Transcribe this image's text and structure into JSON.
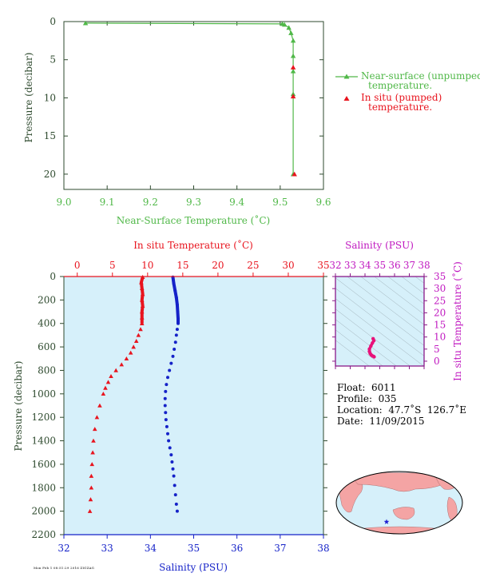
{
  "chart_data": [
    {
      "type": "line",
      "xlabel": "Near-Surface Temperature (˚C)",
      "ylabel": "Pressure (decibar)",
      "xlim": [
        9.0,
        9.6
      ],
      "ylim": [
        22,
        0
      ],
      "xticks": [
        "9.0",
        "9.1",
        "9.2",
        "9.3",
        "9.4",
        "9.5",
        "9.6"
      ],
      "yticks": [
        "0",
        "5",
        "10",
        "15",
        "20"
      ],
      "legend_position": "right",
      "series": [
        {
          "name": "Near-surface (unpumped)",
          "name_line2": "temperature.",
          "color": "#50b848",
          "marker": "triangle",
          "points": [
            [
              9.05,
              0.2
            ],
            [
              9.505,
              0.3
            ],
            [
              9.51,
              0.4
            ],
            [
              9.52,
              0.8
            ],
            [
              9.525,
              1.5
            ],
            [
              9.53,
              2.5
            ],
            [
              9.53,
              4.5
            ],
            [
              9.53,
              6.5
            ],
            [
              9.53,
              9.5
            ],
            [
              9.53,
              20.0
            ]
          ]
        },
        {
          "name": "In situ (pumped)",
          "name_line2": "temperature.",
          "color": "#e8141e",
          "marker": "triangle",
          "points": [
            [
              9.53,
              6.0
            ],
            [
              9.53,
              9.8
            ],
            [
              9.533,
              20.0
            ]
          ]
        }
      ]
    },
    {
      "type": "line",
      "xlabel_top": "In situ Temperature (˚C)",
      "xlabel_bottom": "Salinity (PSU)",
      "ylabel": "Pressure (decibar)",
      "xlim_top": [
        -1.9,
        35
      ],
      "xlim_bottom": [
        32,
        38
      ],
      "ylim": [
        2200,
        0
      ],
      "xticks_top": [
        "0",
        "5",
        "10",
        "15",
        "20",
        "25",
        "30",
        "35"
      ],
      "xticks_bottom": [
        "32",
        "33",
        "34",
        "35",
        "36",
        "37",
        "38"
      ],
      "yticks": [
        "0",
        "200",
        "400",
        "600",
        "800",
        "1000",
        "1200",
        "1400",
        "1600",
        "1800",
        "2000",
        "2200"
      ],
      "series": [
        {
          "name": "In situ Temperature",
          "axis": "top",
          "color": "#e8141e",
          "marker": "triangle",
          "points": [
            [
              9.3,
              5
            ],
            [
              9.1,
              50
            ],
            [
              9.2,
              100
            ],
            [
              9.3,
              150
            ],
            [
              9.2,
              200
            ],
            [
              9.3,
              250
            ],
            [
              9.2,
              300
            ],
            [
              9.2,
              350
            ],
            [
              9.2,
              400
            ],
            [
              9.0,
              450
            ],
            [
              8.7,
              500
            ],
            [
              8.4,
              550
            ],
            [
              8.0,
              600
            ],
            [
              7.6,
              650
            ],
            [
              7.0,
              700
            ],
            [
              6.3,
              750
            ],
            [
              5.5,
              800
            ],
            [
              4.8,
              850
            ],
            [
              4.4,
              900
            ],
            [
              4.0,
              950
            ],
            [
              3.7,
              1000
            ],
            [
              3.2,
              1100
            ],
            [
              2.8,
              1200
            ],
            [
              2.5,
              1300
            ],
            [
              2.3,
              1400
            ],
            [
              2.2,
              1500
            ],
            [
              2.1,
              1600
            ],
            [
              2.0,
              1700
            ],
            [
              2.0,
              1800
            ],
            [
              1.9,
              1900
            ],
            [
              1.8,
              2000
            ]
          ]
        },
        {
          "name": "Salinity",
          "axis": "bottom",
          "color": "#1522c8",
          "marker": "circle",
          "points": [
            [
              34.52,
              5
            ],
            [
              34.54,
              60
            ],
            [
              34.57,
              120
            ],
            [
              34.6,
              180
            ],
            [
              34.62,
              240
            ],
            [
              34.63,
              300
            ],
            [
              34.64,
              360
            ],
            [
              34.64,
              400
            ],
            [
              34.62,
              450
            ],
            [
              34.6,
              500
            ],
            [
              34.58,
              560
            ],
            [
              34.55,
              620
            ],
            [
              34.52,
              680
            ],
            [
              34.48,
              740
            ],
            [
              34.44,
              800
            ],
            [
              34.4,
              860
            ],
            [
              34.37,
              920
            ],
            [
              34.35,
              980
            ],
            [
              34.34,
              1040
            ],
            [
              34.34,
              1100
            ],
            [
              34.35,
              1160
            ],
            [
              34.36,
              1220
            ],
            [
              34.38,
              1280
            ],
            [
              34.4,
              1340
            ],
            [
              34.42,
              1400
            ],
            [
              34.45,
              1460
            ],
            [
              34.48,
              1520
            ],
            [
              34.5,
              1580
            ],
            [
              34.52,
              1640
            ],
            [
              34.54,
              1700
            ],
            [
              34.56,
              1780
            ],
            [
              34.58,
              1860
            ],
            [
              34.6,
              1940
            ],
            [
              34.62,
              2000
            ]
          ]
        }
      ]
    },
    {
      "type": "scatter",
      "xlabel": "Salinity (PSU)",
      "ylabel": "In situ Temperature (˚C)",
      "xlim": [
        32,
        38
      ],
      "ylim": [
        -2,
        35
      ],
      "xticks": [
        "32",
        "33",
        "34",
        "35",
        "36",
        "37",
        "38"
      ],
      "yticks": [
        "0",
        "5",
        "10",
        "15",
        "20",
        "25",
        "30",
        "35"
      ],
      "color": "#e8127a",
      "points": [
        [
          34.55,
          9.3
        ],
        [
          34.6,
          8.5
        ],
        [
          34.5,
          7.5
        ],
        [
          34.4,
          6.3
        ],
        [
          34.3,
          5.0
        ],
        [
          34.3,
          4.0
        ],
        [
          34.35,
          3.2
        ],
        [
          34.42,
          2.6
        ],
        [
          34.5,
          2.2
        ],
        [
          34.58,
          2.0
        ],
        [
          34.62,
          1.8
        ]
      ]
    }
  ],
  "float_info": {
    "float": "Float:  6011",
    "profile": "Profile:  035",
    "location": "Location:  47.7˚S  126.7˚E",
    "date": "Date:  11/09/2015"
  },
  "map": {
    "land_color": "#f4a4a4",
    "ocean_color": "#d6f0fa",
    "marker_color": "#1e1ed2"
  },
  "footer": {
    "small_text": "Mon Feb 1 08:51:29 2016  ZIGZAG"
  }
}
